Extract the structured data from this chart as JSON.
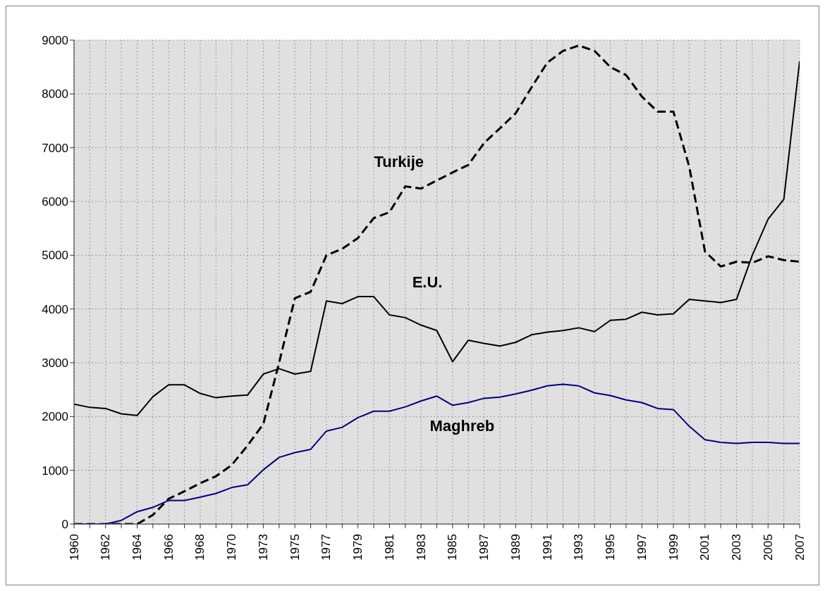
{
  "chart_data": {
    "type": "line",
    "categories": [
      "1960",
      null,
      "1962",
      null,
      "1964",
      null,
      "1966",
      null,
      "1968",
      null,
      "1970",
      null,
      "1973",
      null,
      "1975",
      null,
      "1977",
      null,
      "1979",
      null,
      "1981",
      null,
      "1983",
      null,
      "1985",
      null,
      "1987",
      null,
      "1989",
      null,
      "1991",
      null,
      "1993",
      null,
      "1995",
      null,
      "1997",
      null,
      "1999",
      null,
      "2001",
      null,
      "2003",
      null,
      "2005",
      null,
      "2007"
    ],
    "series": [
      {
        "name": "Turkije",
        "color": "#000000",
        "line_style": "dashed",
        "values": [
          0,
          0,
          0,
          0,
          0,
          170,
          470,
          610,
          760,
          890,
          1100,
          1460,
          1860,
          3000,
          4200,
          4320,
          5000,
          5120,
          5320,
          5690,
          5800,
          6280,
          6240,
          6390,
          6540,
          6680,
          7090,
          7360,
          7640,
          8120,
          8580,
          8800,
          8900,
          8800,
          8500,
          8350,
          7950,
          7670,
          7670,
          6650,
          5070,
          4790,
          4880,
          4860,
          4980,
          4910,
          4880
        ]
      },
      {
        "name": "E.U.",
        "color": "#000000",
        "line_style": "solid",
        "values": [
          2230,
          2170,
          2150,
          2050,
          2020,
          2370,
          2590,
          2590,
          2430,
          2350,
          2380,
          2400,
          2790,
          2890,
          2790,
          2840,
          4150,
          4100,
          4230,
          4230,
          3890,
          3840,
          3700,
          3600,
          3020,
          3420,
          3360,
          3310,
          3380,
          3520,
          3570,
          3600,
          3650,
          3580,
          3790,
          3810,
          3940,
          3890,
          3910,
          4180,
          4150,
          4120,
          4180,
          5000,
          5670,
          6040,
          8610
        ]
      },
      {
        "name": "Maghreb",
        "color": "#000080",
        "line_style": "solid",
        "values": [
          0,
          0,
          0,
          70,
          230,
          310,
          440,
          440,
          500,
          570,
          680,
          730,
          1010,
          1240,
          1330,
          1390,
          1730,
          1800,
          1980,
          2100,
          2100,
          2180,
          2290,
          2380,
          2210,
          2260,
          2340,
          2360,
          2420,
          2490,
          2570,
          2600,
          2570,
          2440,
          2390,
          2310,
          2260,
          2150,
          2130,
          1820,
          1570,
          1520,
          1500,
          1520,
          1520,
          1500,
          1500
        ]
      }
    ],
    "ylim": [
      0,
      9000
    ],
    "yticks": [
      0,
      1000,
      2000,
      3000,
      4000,
      5000,
      6000,
      7000,
      8000,
      9000
    ],
    "grid": true,
    "marker": "none"
  }
}
